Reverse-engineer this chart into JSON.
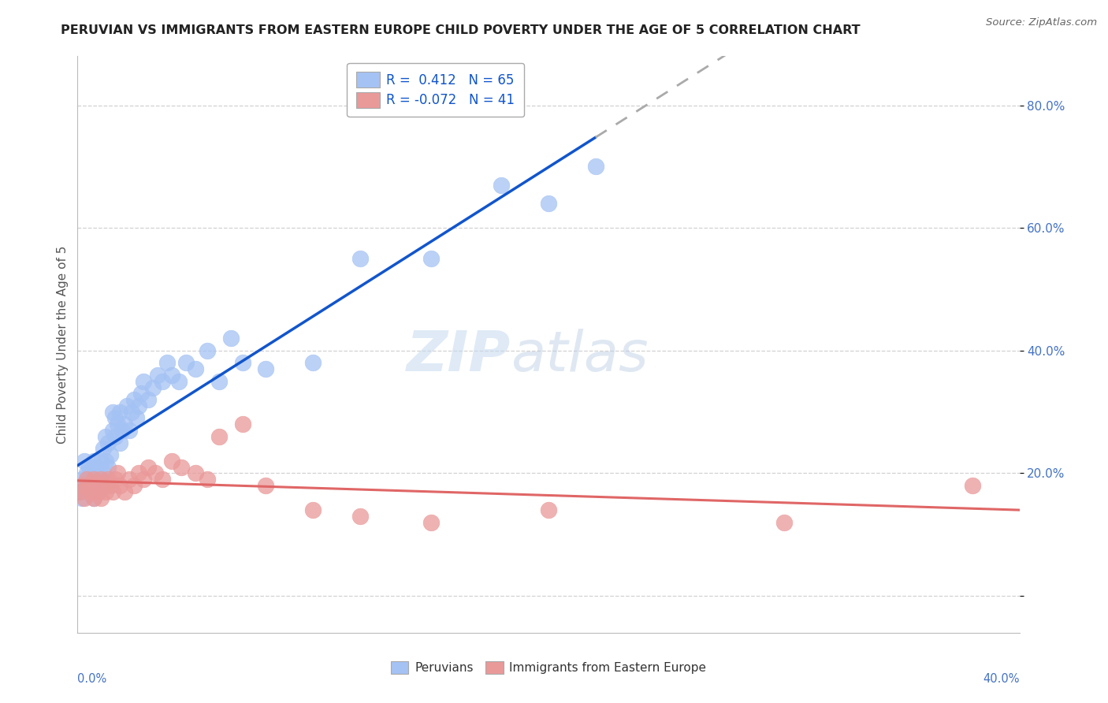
{
  "title": "PERUVIAN VS IMMIGRANTS FROM EASTERN EUROPE CHILD POVERTY UNDER THE AGE OF 5 CORRELATION CHART",
  "source": "Source: ZipAtlas.com",
  "ylabel": "Child Poverty Under the Age of 5",
  "xlim": [
    0.0,
    0.4
  ],
  "ylim": [
    -0.06,
    0.88
  ],
  "yticks": [
    0.0,
    0.2,
    0.4,
    0.6,
    0.8
  ],
  "ytick_labels": [
    "",
    "20.0%",
    "40.0%",
    "60.0%",
    "80.0%"
  ],
  "r_peruvian": 0.412,
  "n_peruvian": 65,
  "r_eastern_europe": -0.072,
  "n_eastern_europe": 41,
  "peruvian_color": "#a4c2f4",
  "eastern_europe_color": "#ea9999",
  "peruvian_line_color": "#1155cc",
  "eastern_europe_line_color": "#e06666",
  "watermark_zip": "ZIP",
  "watermark_atlas": "atlas",
  "peruvian_x": [
    0.001,
    0.002,
    0.002,
    0.003,
    0.003,
    0.004,
    0.004,
    0.005,
    0.005,
    0.006,
    0.006,
    0.006,
    0.007,
    0.007,
    0.007,
    0.008,
    0.008,
    0.009,
    0.009,
    0.01,
    0.01,
    0.011,
    0.011,
    0.012,
    0.012,
    0.013,
    0.013,
    0.014,
    0.015,
    0.015,
    0.016,
    0.016,
    0.017,
    0.018,
    0.018,
    0.019,
    0.02,
    0.021,
    0.022,
    0.023,
    0.024,
    0.025,
    0.026,
    0.027,
    0.028,
    0.03,
    0.032,
    0.034,
    0.036,
    0.038,
    0.04,
    0.043,
    0.046,
    0.05,
    0.055,
    0.06,
    0.065,
    0.07,
    0.08,
    0.1,
    0.12,
    0.15,
    0.18,
    0.2,
    0.22
  ],
  "peruvian_y": [
    0.17,
    0.19,
    0.16,
    0.18,
    0.22,
    0.17,
    0.2,
    0.19,
    0.21,
    0.17,
    0.18,
    0.2,
    0.16,
    0.19,
    0.22,
    0.18,
    0.21,
    0.17,
    0.2,
    0.19,
    0.22,
    0.2,
    0.24,
    0.22,
    0.26,
    0.21,
    0.25,
    0.23,
    0.27,
    0.3,
    0.26,
    0.29,
    0.28,
    0.25,
    0.3,
    0.27,
    0.28,
    0.31,
    0.27,
    0.3,
    0.32,
    0.29,
    0.31,
    0.33,
    0.35,
    0.32,
    0.34,
    0.36,
    0.35,
    0.38,
    0.36,
    0.35,
    0.38,
    0.37,
    0.4,
    0.35,
    0.42,
    0.38,
    0.37,
    0.38,
    0.55,
    0.55,
    0.67,
    0.64,
    0.7
  ],
  "eastern_europe_x": [
    0.001,
    0.002,
    0.003,
    0.004,
    0.005,
    0.006,
    0.007,
    0.007,
    0.008,
    0.009,
    0.01,
    0.01,
    0.011,
    0.012,
    0.013,
    0.014,
    0.015,
    0.016,
    0.017,
    0.018,
    0.02,
    0.022,
    0.024,
    0.026,
    0.028,
    0.03,
    0.033,
    0.036,
    0.04,
    0.044,
    0.05,
    0.055,
    0.06,
    0.07,
    0.08,
    0.1,
    0.12,
    0.15,
    0.2,
    0.3,
    0.38
  ],
  "eastern_europe_y": [
    0.17,
    0.18,
    0.16,
    0.19,
    0.18,
    0.17,
    0.16,
    0.19,
    0.18,
    0.17,
    0.19,
    0.16,
    0.18,
    0.17,
    0.19,
    0.18,
    0.17,
    0.19,
    0.2,
    0.18,
    0.17,
    0.19,
    0.18,
    0.2,
    0.19,
    0.21,
    0.2,
    0.19,
    0.22,
    0.21,
    0.2,
    0.19,
    0.26,
    0.28,
    0.18,
    0.14,
    0.13,
    0.12,
    0.14,
    0.12,
    0.18
  ]
}
